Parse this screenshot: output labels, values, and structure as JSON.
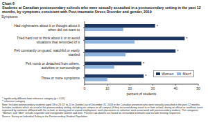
{
  "chart_data": {
    "type": "bar",
    "orientation": "horizontal",
    "title": "Chart 6",
    "subtitle": "Students at Canadian postsecondary schools who were sexually assaulted in a postsecondary setting in the past 12 months, by symptoms consistent with Post-traumatic Stress Disorder and gender, 2019",
    "y_label": "Symptoms",
    "x_label": "percent of students",
    "categories": [
      "Had nightmares about it or thought about it when did not want to",
      "Tried hard not to think about it or to avoid situations that reminded of it",
      "Felt constantly on guard, watchful or easily startled",
      "Felt numb or detached from others, activities or surroundings",
      "Three or more symptoms"
    ],
    "series": [
      {
        "name": "Women",
        "color": "#1c3661",
        "values": [
          31,
          44,
          40,
          25,
          26
        ],
        "annotations": [
          "*",
          "*",
          "*",
          "*",
          "*"
        ]
      },
      {
        "name": "Men†",
        "color": "#8fb4dd",
        "values": [
          17,
          22,
          18,
          13,
          10
        ]
      }
    ],
    "xlim": [
      0,
      50
    ],
    "xticks": [
      0,
      10,
      20,
      30,
      40,
      50
    ],
    "grid": false,
    "legend": "lower right",
    "notes": [
      "* significantly different from reference category (p < 0.05)",
      "† reference category",
      "Note: Includes postsecondary students aged 18 to 24 (17 to 24 in Quebec) as of December 31, 2018 in the Canadian provinces who were sexually assaulted in the past 12 months. Includes incidents which occurred in the postsecondary setting, including on campus or off campus (if they occurred during travel to or from school, during an official or unofficial event organized by someone affiliated with the school, or during paid or unpaid employment, work placements or volunteer work associated with postsecondary studies). The categories \"Women\" and \"Men\" include cisgender and transgender women and men. Percent calculations are based on unrounded estimates and include missing responses.",
      "Source: Survey on Individual Safety in the Postsecondary Student Population."
    ]
  }
}
